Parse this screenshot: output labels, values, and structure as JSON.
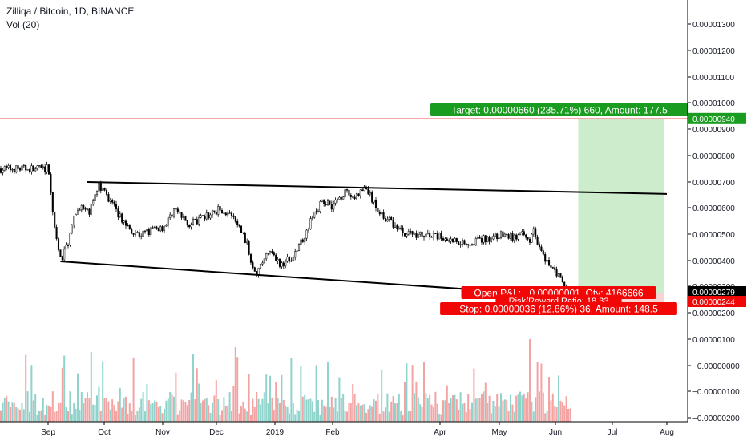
{
  "header": {
    "symbol_line": "Zilliqa / Bitcoin, 1D, BINANCE",
    "volume_line": "Vol (20)"
  },
  "colors": {
    "up": "#26a69a",
    "down": "#ef5350",
    "vol_up": "#8fd3cb",
    "vol_down": "#f4a3a3",
    "target_zone": "#cdeccb",
    "target_label": "#1a9c20",
    "stop_label": "#f20707",
    "hline": "#f08a8a",
    "candle": "#000000",
    "grid_axis": "#000000"
  },
  "chart_data": {
    "type": "candlestick",
    "x": [
      "Sep",
      "Oct",
      "Nov",
      "Dec",
      "2019",
      "Feb",
      "Apr",
      "May",
      "Jun",
      "Jul",
      "Aug"
    ],
    "y_ticks": [
      "0.00001300",
      "0.00001200",
      "0.00001100",
      "0.00001000",
      "0.00000900",
      "0.00000800",
      "0.00000700",
      "0.00000600",
      "0.00000500",
      "0.00000400",
      "0.00000300",
      "0.00000200",
      "0.00000100",
      "−0.00000000",
      "−0.00000100",
      "−0.00000200"
    ],
    "ylim": [
      -2e-06,
      1.39e-05
    ],
    "price_series": [
      [
        -0.02,
        7.5e-06
      ],
      [
        0.05,
        6.4e-06
      ],
      [
        0.1,
        5.2e-06
      ],
      [
        0.17,
        4.4e-06
      ],
      [
        0.22,
        4e-06
      ],
      [
        0.35,
        4.8e-06
      ],
      [
        0.45,
        5.6e-06
      ],
      [
        0.55,
        6.1e-06
      ],
      [
        0.7,
        5.8e-06
      ],
      [
        0.82,
        6.4e-06
      ],
      [
        0.9,
        6.9e-06
      ],
      [
        1.0,
        6.6e-06
      ],
      [
        1.12,
        6.2e-06
      ],
      [
        1.22,
        5.8e-06
      ],
      [
        1.35,
        5.4e-06
      ],
      [
        1.45,
        5.2e-06
      ],
      [
        1.6,
        5e-06
      ],
      [
        1.8,
        5.2e-06
      ],
      [
        2.0,
        5.3e-06
      ],
      [
        2.1,
        5.6e-06
      ],
      [
        2.2,
        6e-06
      ],
      [
        2.32,
        5.7e-06
      ],
      [
        2.5,
        5.4e-06
      ],
      [
        2.7,
        5.6e-06
      ],
      [
        2.9,
        5.8e-06
      ],
      [
        3.05,
        6e-06
      ],
      [
        3.25,
        5.7e-06
      ],
      [
        3.4,
        5.2e-06
      ],
      [
        3.5,
        4.7e-06
      ],
      [
        3.58,
        4e-06
      ],
      [
        3.68,
        3.6e-06
      ],
      [
        3.78,
        4e-06
      ],
      [
        3.9,
        4.4e-06
      ],
      [
        4.0,
        4e-06
      ],
      [
        4.1,
        3.9e-06
      ],
      [
        4.22,
        4.1e-06
      ],
      [
        4.35,
        4.3e-06
      ],
      [
        4.48,
        4.9e-06
      ],
      [
        4.6,
        5.5e-06
      ],
      [
        4.72,
        6e-06
      ],
      [
        4.85,
        6.3e-06
      ],
      [
        4.98,
        6.1e-06
      ],
      [
        5.1,
        6.6e-06
      ],
      [
        5.2,
        6.4e-06
      ],
      [
        5.3,
        6.8e-06
      ],
      [
        5.4,
        6e-06
      ],
      [
        5.5,
        5.6e-06
      ],
      [
        5.65,
        5.1e-06
      ],
      [
        5.85,
        5e-06
      ],
      [
        6.05,
        4.9e-06
      ],
      [
        6.25,
        4.8e-06
      ],
      [
        6.45,
        4.7e-06
      ],
      [
        6.65,
        4.8e-06
      ],
      [
        6.85,
        4.9e-06
      ],
      [
        7.05,
        5e-06
      ],
      [
        7.25,
        4.9e-06
      ],
      [
        7.4,
        5e-06
      ],
      [
        7.52,
        4.8e-06
      ],
      [
        7.6,
        5.2e-06
      ],
      [
        7.68,
        4.7e-06
      ],
      [
        7.76,
        4.2e-06
      ],
      [
        7.85,
        4e-06
      ],
      [
        7.95,
        3.8e-06
      ],
      [
        8.05,
        3.4e-06
      ],
      [
        8.12,
        3.1e-06
      ],
      [
        8.2,
        2.9e-06
      ],
      [
        8.26,
        2.79e-06
      ]
    ],
    "trendlines": [
      {
        "from": [
          0.7,
          7e-06
        ],
        "to": [
          10.0,
          6.55e-06
        ]
      },
      {
        "from": [
          0.22,
          4e-06
        ],
        "to": [
          7.8,
          2.75e-06
        ]
      }
    ],
    "horizontal_line": {
      "y": 9.4e-06,
      "label": "0.00000940"
    },
    "position": {
      "x_start": 8.4,
      "x_end": 9.95,
      "entry": 2.79e-06,
      "target": 9.4e-06,
      "stop": 2.44e-06,
      "target_text": "Target: 0.00000660 (235.71%) 660, Amount: 177.5",
      "pnl_text": "Open P&L: −0.00000001, Qty: 4166666",
      "rr_text": "Risk/Reward Ratio: 18.33",
      "stop_text": "Stop: 0.00000036 (12.86%) 36, Amount: 148.5",
      "entry_label": "0.00000279",
      "stop_label": "0.00000244"
    }
  }
}
